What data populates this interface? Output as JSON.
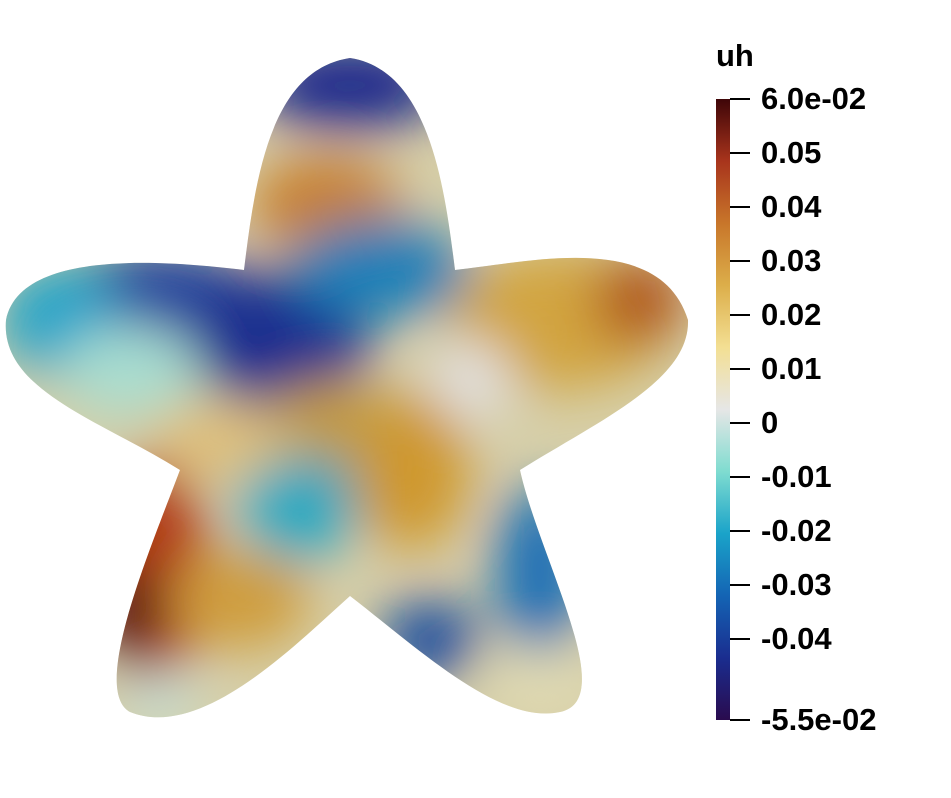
{
  "legend": {
    "title": "uh",
    "range": [
      -0.055,
      0.06
    ],
    "colors": [
      "#2a0b4e",
      "#1a2d8f",
      "#1464b4",
      "#1aa3c9",
      "#7fdcd0",
      "#e6e6e6",
      "#f3df93",
      "#dcae4a",
      "#c8762a",
      "#a8341c",
      "#3e0508"
    ],
    "ticks": [
      {
        "value": 0.06,
        "label": "6.0e-02"
      },
      {
        "value": 0.05,
        "label": "0.05"
      },
      {
        "value": 0.04,
        "label": "0.04"
      },
      {
        "value": 0.03,
        "label": "0.03"
      },
      {
        "value": 0.02,
        "label": "0.02"
      },
      {
        "value": 0.01,
        "label": "0.01"
      },
      {
        "value": 0.0,
        "label": "0"
      },
      {
        "value": -0.01,
        "label": "-0.01"
      },
      {
        "value": -0.02,
        "label": "-0.02"
      },
      {
        "value": -0.03,
        "label": "-0.03"
      },
      {
        "value": -0.04,
        "label": "-0.04"
      },
      {
        "value": -0.055,
        "label": "-5.5e-02"
      }
    ]
  }
}
